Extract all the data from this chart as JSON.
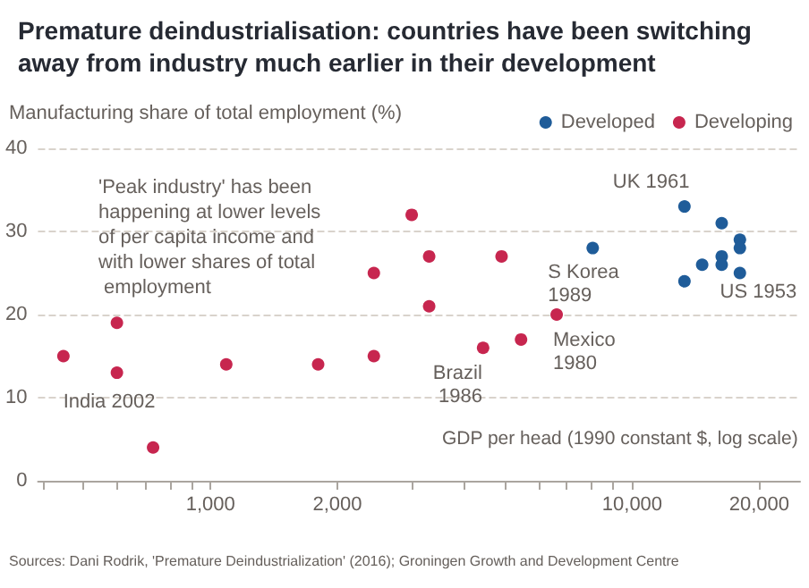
{
  "chart_data": {
    "type": "scatter",
    "title": "Premature deindustrialisation: countries have been switching away from industry much earlier in their development",
    "xlabel": "GDP per head (1990 constant $, log scale)",
    "ylabel": "Manufacturing share of total employment (%)",
    "series": [
      {
        "name": "Developed",
        "color": "#1f5c99",
        "x": [
          8060,
          13300,
          13300,
          14650,
          16300,
          16300,
          16300,
          18000,
          18000,
          18000
        ],
        "values": [
          28,
          33,
          24,
          26,
          31,
          27,
          26,
          29,
          28,
          25
        ]
      },
      {
        "name": "Developing",
        "color": "#c7264f",
        "x": [
          448,
          600,
          600,
          731,
          1090,
          1800,
          2440,
          2440,
          3000,
          3300,
          3300,
          4900,
          4430,
          5450,
          6620
        ],
        "values": [
          15,
          19,
          13,
          4,
          14,
          14,
          15,
          25,
          32,
          27,
          21,
          27,
          16,
          17,
          20
        ]
      }
    ],
    "log": "x",
    "xlim": [
      390,
      25000
    ],
    "xticks": [
      {
        "value": 400,
        "label": null
      },
      {
        "value": 500,
        "label": null
      },
      {
        "value": 600,
        "label": null
      },
      {
        "value": 700,
        "label": null
      },
      {
        "value": 800,
        "label": null
      },
      {
        "value": 900,
        "label": null
      },
      {
        "value": 1000,
        "label": "1,000"
      },
      {
        "value": 2000,
        "label": "2,000"
      },
      {
        "value": 3000,
        "label": null
      },
      {
        "value": 4000,
        "label": null
      },
      {
        "value": 5000,
        "label": null
      },
      {
        "value": 6000,
        "label": null
      },
      {
        "value": 7000,
        "label": null
      },
      {
        "value": 8000,
        "label": null
      },
      {
        "value": 9000,
        "label": null
      },
      {
        "value": 10000,
        "label": "10,000"
      },
      {
        "value": 20000,
        "label": "20,000"
      }
    ],
    "ylim": [
      0,
      40
    ],
    "yticks": [
      0,
      10,
      20,
      30,
      40
    ],
    "grid": "y",
    "legend": "top right",
    "marker": "circle",
    "annotations": [
      "'Peak industry' has been happening at lower levels of per capita income and with lower shares of total employment",
      {
        "text": "India 2002",
        "x": 600,
        "y": 13
      },
      {
        "text": "Brazil 1986",
        "x": 4430,
        "y": 16
      },
      {
        "text": "Mexico 1980",
        "x": 6620,
        "y": 20
      },
      {
        "text": "S Korea 1989",
        "x": 8060,
        "y": 28
      },
      {
        "text": "UK 1961",
        "x": 13300,
        "y": 33
      },
      {
        "text": "US 1953",
        "x": 14650,
        "y": 26
      },
      "Sources: Dani Rodrik, 'Premature Deindustrialization' (2016); Groningen Growth and Development Centre"
    ]
  }
}
